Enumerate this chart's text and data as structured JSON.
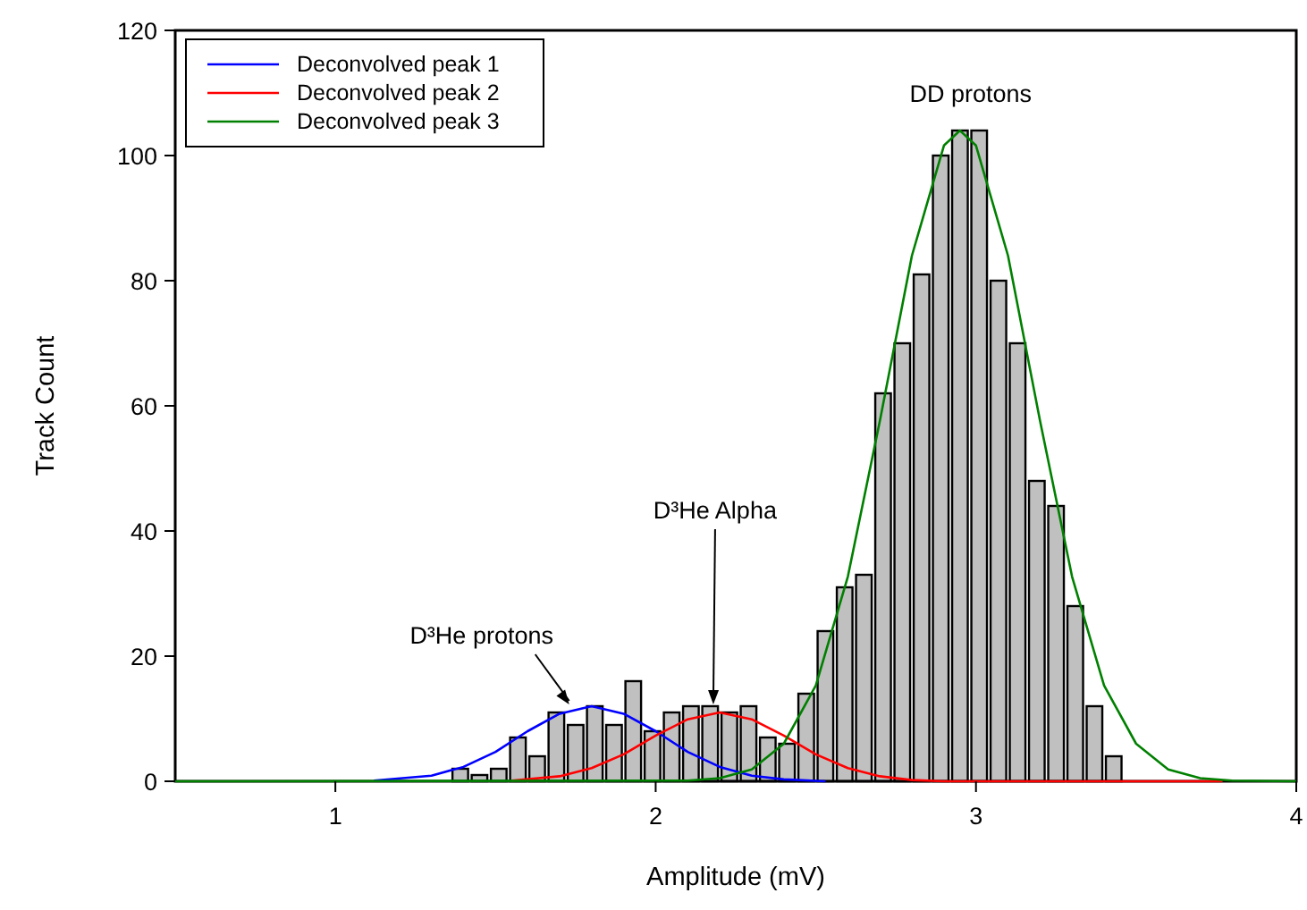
{
  "chart_data": {
    "type": "histogram",
    "xlabel": "Amplitude (mV)",
    "ylabel": "Track Count",
    "xlim": [
      0.5,
      4
    ],
    "ylim": [
      0,
      120
    ],
    "xticks": [
      1,
      2,
      3,
      4
    ],
    "yticks": [
      0,
      20,
      40,
      60,
      80,
      100,
      120
    ],
    "grid": false,
    "legend": "top left",
    "color": "#c0c0c0",
    "bins": [
      1.36,
      1.42,
      1.48,
      1.54,
      1.6,
      1.66,
      1.72,
      1.78,
      1.84,
      1.9,
      1.96,
      2.02,
      2.08,
      2.14,
      2.2,
      2.26,
      2.32,
      2.38,
      2.44,
      2.5,
      2.56,
      2.62,
      2.68,
      2.74,
      2.8,
      2.86,
      2.92,
      2.98,
      3.04,
      3.1,
      3.16,
      3.22,
      3.28,
      3.34,
      3.4,
      3.46
    ],
    "values": [
      2,
      1,
      2,
      7,
      4,
      11,
      9,
      12,
      9,
      16,
      8,
      11,
      12,
      12,
      11,
      12,
      7,
      6,
      14,
      24,
      31,
      33,
      62,
      70,
      81,
      100,
      104,
      104,
      80,
      70,
      48,
      44,
      28,
      12,
      4
    ],
    "series": [
      {
        "name": "Deconvolved peak 1",
        "type": "line",
        "color": "#0000ff",
        "x": [
          1.12,
          1.3,
          1.4,
          1.5,
          1.6,
          1.7,
          1.8,
          1.9,
          2.0,
          2.1,
          2.2,
          2.3,
          2.4,
          2.53
        ],
        "values": [
          0.1,
          0.9,
          2.3,
          4.7,
          8,
          10.8,
          12,
          10.8,
          8,
          4.7,
          2.3,
          0.9,
          0.3,
          0
        ]
      },
      {
        "name": "Deconvolved peak 2",
        "type": "line",
        "color": "#ff0000",
        "x": [
          1.55,
          1.7,
          1.8,
          1.9,
          2.0,
          2.1,
          2.2,
          2.3,
          2.4,
          2.5,
          2.6,
          2.7,
          2.8,
          2.9,
          3.77
        ],
        "values": [
          0.1,
          0.8,
          2.1,
          4.3,
          7.3,
          9.9,
          11,
          9.9,
          7.3,
          4.3,
          2.1,
          0.8,
          0.2,
          0,
          0
        ]
      },
      {
        "name": "Deconvolved peak 3",
        "type": "line",
        "color": "#008000",
        "x": [
          0.5,
          2.1,
          2.2,
          2.3,
          2.4,
          2.5,
          2.6,
          2.7,
          2.8,
          2.9,
          2.95,
          3.0,
          3.1,
          3.2,
          3.3,
          3.4,
          3.5,
          3.6,
          3.7,
          3.8,
          4.0
        ],
        "values": [
          0,
          0.1,
          0.5,
          1.9,
          6,
          15.3,
          32.7,
          57.6,
          84,
          101.6,
          104,
          101.6,
          84,
          57.6,
          32.7,
          15.3,
          6,
          1.9,
          0.5,
          0.1,
          0
        ]
      }
    ],
    "annotations": [
      {
        "text": "D³He protons",
        "x": 1.73,
        "y": 12
      },
      {
        "text": "D³He Alpha",
        "x": 2.18,
        "y": 12
      },
      {
        "text": "DD protons",
        "x": 2.95,
        "y": 104
      }
    ]
  }
}
